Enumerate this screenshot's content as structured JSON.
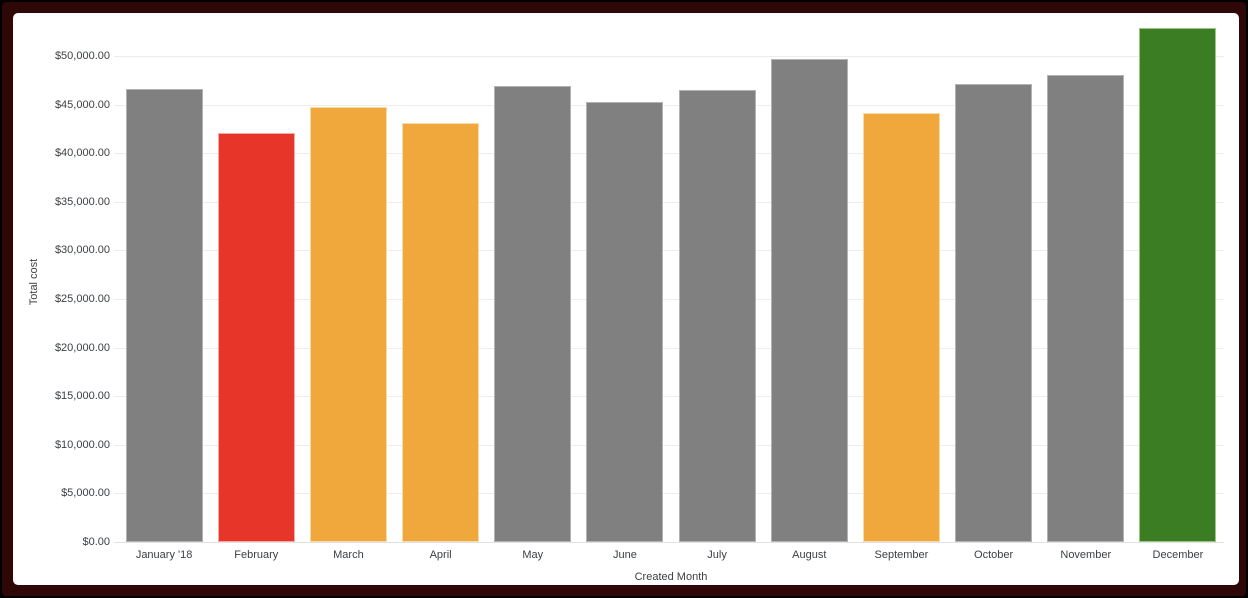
{
  "frame": {
    "outer_rim_color": "#000000",
    "border_color": "#300707",
    "panel_background": "#ffffff"
  },
  "chart_data": {
    "type": "bar",
    "title": "",
    "xlabel": "Created Month",
    "ylabel": "Total cost",
    "legend": "none",
    "grid": true,
    "categories": [
      "January '18",
      "February",
      "March",
      "April",
      "May",
      "June",
      "July",
      "August",
      "September",
      "October",
      "November",
      "December"
    ],
    "values": [
      46600,
      42100,
      44800,
      43100,
      46900,
      45300,
      46500,
      49700,
      44100,
      47100,
      48100,
      52900
    ],
    "bar_color_names": [
      "gray",
      "red",
      "orange",
      "orange",
      "gray",
      "gray",
      "gray",
      "gray",
      "orange",
      "gray",
      "gray",
      "green"
    ],
    "palette": {
      "gray": {
        "fill": "#808080",
        "stroke": "#b3b3b3"
      },
      "red": {
        "fill": "#e8352a",
        "stroke": "#f3aba5"
      },
      "orange": {
        "fill": "#f0a83d",
        "stroke": "#f6dba8"
      },
      "green": {
        "fill": "#3a7d23",
        "stroke": "#9cc48b"
      }
    },
    "ylim": [
      0,
      53100
    ],
    "y_ticks": [
      {
        "value": 0,
        "label": "$0.00"
      },
      {
        "value": 5000,
        "label": "$5,000.00"
      },
      {
        "value": 10000,
        "label": "$10,000.00"
      },
      {
        "value": 15000,
        "label": "$15,000.00"
      },
      {
        "value": 20000,
        "label": "$20,000.00"
      },
      {
        "value": 25000,
        "label": "$25,000.00"
      },
      {
        "value": 30000,
        "label": "$30,000.00"
      },
      {
        "value": 35000,
        "label": "$35,000.00"
      },
      {
        "value": 40000,
        "label": "$40,000.00"
      },
      {
        "value": 45000,
        "label": "$45,000.00"
      },
      {
        "value": 50000,
        "label": "$50,000.00"
      }
    ]
  }
}
